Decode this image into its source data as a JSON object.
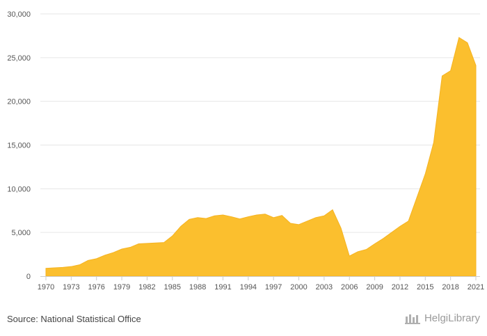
{
  "chart_data": {
    "type": "area",
    "title": "",
    "xlabel": "",
    "ylabel": "",
    "ylim": [
      0,
      30000
    ],
    "yticks": [
      0,
      5000,
      10000,
      15000,
      20000,
      25000,
      30000
    ],
    "ytick_labels": [
      "0",
      "5,000",
      "10,000",
      "15,000",
      "20,000",
      "25,000",
      "30,000"
    ],
    "xticks": [
      1970,
      1973,
      1976,
      1979,
      1982,
      1985,
      1988,
      1991,
      1994,
      1997,
      2000,
      2003,
      2006,
      2009,
      2012,
      2015,
      2018,
      2021
    ],
    "xtick_labels": [
      "1970",
      "1973",
      "1976",
      "1979",
      "1982",
      "1985",
      "1988",
      "1991",
      "1994",
      "1997",
      "2000",
      "2003",
      "2006",
      "2009",
      "2012",
      "2015",
      "2018",
      "2021"
    ],
    "grid": "horizontal",
    "color": "#fbbf2e",
    "series": [
      {
        "x": [
          1970,
          1971,
          1972,
          1973,
          1974,
          1975,
          1976,
          1977,
          1978,
          1979,
          1980,
          1981,
          1982,
          1983,
          1984,
          1985,
          1986,
          1987,
          1988,
          1989,
          1990,
          1991,
          1992,
          1993,
          1994,
          1995,
          1996,
          1997,
          1998,
          1999,
          2000,
          2001,
          2002,
          2003,
          2004,
          2005,
          2006,
          2007,
          2008,
          2009,
          2010,
          2011,
          2012,
          2013,
          2014,
          2015,
          2016,
          2017,
          2018,
          2019,
          2020,
          2021
        ],
        "values": [
          900,
          950,
          1000,
          1100,
          1300,
          1800,
          2000,
          2400,
          2700,
          3100,
          3300,
          3700,
          3750,
          3800,
          3850,
          4600,
          5700,
          6500,
          6700,
          6600,
          6900,
          7000,
          6800,
          6550,
          6800,
          7000,
          7100,
          6700,
          6950,
          6050,
          5900,
          6300,
          6700,
          6900,
          7600,
          5500,
          2300,
          2800,
          3050,
          3700,
          4300,
          5000,
          5700,
          6300,
          9000,
          11700,
          15300,
          22900,
          23500,
          27300,
          26700,
          24100
        ]
      }
    ]
  },
  "footer": {
    "source": "Source: National Statistical Office",
    "brand": "HelgiLibrary",
    "brand_icon": "helgi-library-logo-icon"
  }
}
